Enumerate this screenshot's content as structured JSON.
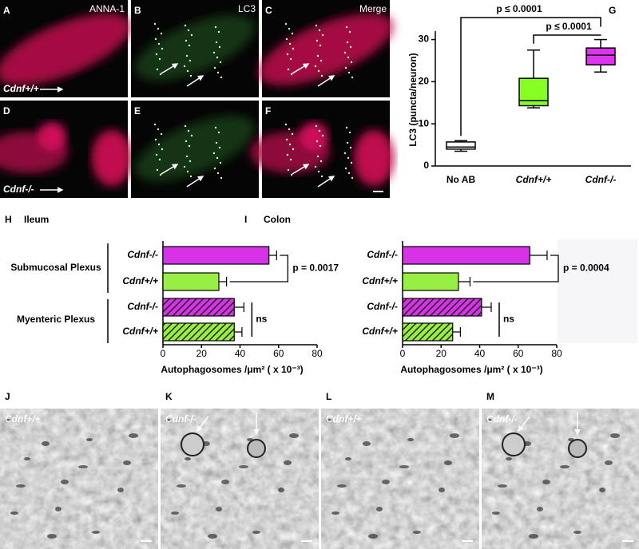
{
  "fluorescence": {
    "panels": [
      {
        "letter": "A",
        "label": "ANNA-1",
        "genotype": "Cdnf+/+"
      },
      {
        "letter": "B",
        "label": "LC3"
      },
      {
        "letter": "C",
        "label": "Merge"
      },
      {
        "letter": "D",
        "genotype": "Cdnf-/-"
      },
      {
        "letter": "E"
      },
      {
        "letter": "F"
      }
    ]
  },
  "chart_data": [
    {
      "type": "box",
      "letter": "G",
      "ylabel": "LC3 (puncta/neuron)",
      "categories": [
        "No AB",
        "Cdnf+/+",
        "Cdnf-/-"
      ],
      "boxes": [
        {
          "min": 3.5,
          "q1": 4,
          "median": 4.5,
          "q3": 5.7,
          "max": 6
        },
        {
          "min": 13.8,
          "q1": 14.3,
          "median": 15.5,
          "q3": 20.8,
          "max": 27.5
        },
        {
          "min": 22.3,
          "q1": 24,
          "median": 26.3,
          "q3": 28,
          "max": 30
        }
      ],
      "colors": [
        "#ffffff",
        "#88ff22",
        "#dd33ee"
      ],
      "ylim": [
        0,
        32
      ],
      "yticks": [
        0,
        10,
        20,
        30
      ],
      "annotations": [
        "p ≤ 0.0001",
        "p ≤ 0.0001"
      ]
    },
    {
      "type": "bar",
      "letter": "H",
      "title": "Ileum",
      "xlabel": "Autophagosomes /μm² ( x 10⁻³)",
      "groups": [
        "Submucosal Plexus",
        "Myenteric Plexus"
      ],
      "categories": [
        "Cdnf-/-",
        "Cdnf+/+",
        "Cdnf-/-",
        "Cdnf+/+"
      ],
      "values": [
        55,
        29,
        37,
        37
      ],
      "errors": [
        4,
        4,
        5,
        4
      ],
      "colors": [
        "#d633e6",
        "#99ee44",
        "#d633e6",
        "#99ee44"
      ],
      "hatched": [
        false,
        false,
        true,
        true
      ],
      "xlim": [
        0,
        80
      ],
      "xticks": [
        0,
        20,
        40,
        60,
        80
      ],
      "annotations": [
        "p = 0.0017",
        "ns"
      ]
    },
    {
      "type": "bar",
      "letter": "I",
      "title": "Colon",
      "xlabel": "Autophagosomes /μm² ( x 10⁻³)",
      "categories": [
        "Cdnf-/-",
        "Cdnf+/+",
        "Cdnf-/-",
        "Cdnf+/+"
      ],
      "values": [
        66,
        29,
        41,
        26
      ],
      "errors": [
        9,
        6,
        5,
        4
      ],
      "colors": [
        "#d633e6",
        "#99ee44",
        "#d633e6",
        "#99ee44"
      ],
      "hatched": [
        false,
        false,
        true,
        true
      ],
      "xlim": [
        0,
        80
      ],
      "xticks": [
        0,
        20,
        40,
        60,
        80
      ],
      "annotations": [
        "p = 0.0004",
        "ns"
      ]
    }
  ],
  "em": {
    "panels": [
      {
        "letter": "J",
        "genotype": "Cdnf+/+"
      },
      {
        "letter": "K",
        "genotype": "Cdnf-/-"
      },
      {
        "letter": "L",
        "genotype": "Cdnf+/+"
      },
      {
        "letter": "M",
        "genotype": "Cdnf-/-"
      }
    ]
  }
}
